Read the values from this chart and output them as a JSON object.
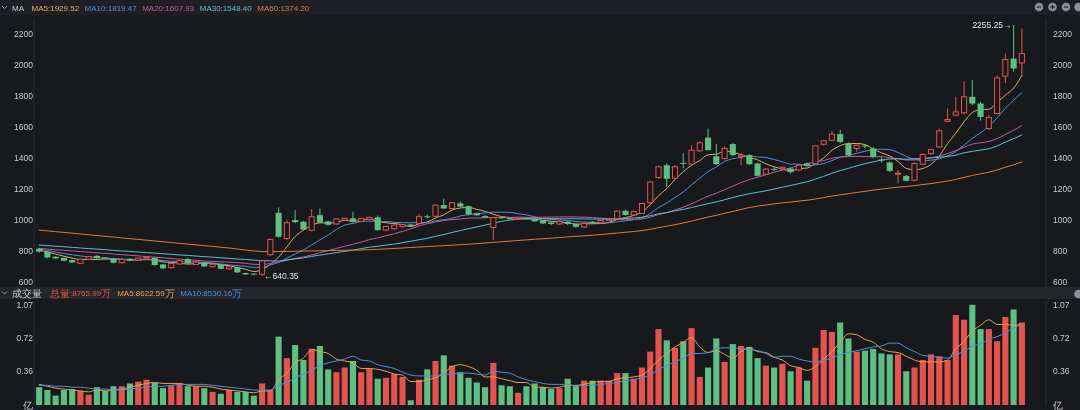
{
  "chart_data": [
    {
      "type": "candlestick",
      "title": "MA",
      "legend": "top left",
      "tick_labels": "y",
      "categories": [
        null,
        null,
        null,
        null,
        null,
        null,
        null,
        null,
        null,
        null,
        null,
        null,
        null,
        null,
        null,
        null,
        null,
        null,
        null,
        null,
        null,
        null,
        null,
        null,
        null,
        null,
        null,
        null,
        null,
        null,
        null,
        null,
        null,
        null,
        null,
        null,
        null,
        null,
        null,
        null,
        null,
        null,
        null,
        null,
        null,
        null,
        null,
        null,
        null,
        null,
        null,
        null,
        null,
        null,
        null,
        null,
        null,
        null,
        null,
        null,
        null,
        null,
        null,
        null,
        null,
        null,
        null,
        null,
        null,
        null,
        null,
        null,
        null,
        null,
        null,
        null,
        null,
        null,
        null,
        null,
        null,
        null,
        null,
        null,
        null,
        null,
        null,
        null,
        null,
        null,
        null,
        null,
        null,
        null,
        null,
        null,
        null,
        null,
        null,
        null,
        null,
        null,
        null,
        null,
        null,
        null,
        null,
        null,
        null,
        null,
        null,
        null,
        null,
        null,
        null,
        null,
        null,
        null,
        null,
        null
      ],
      "ohlc": [
        [
          816,
          822,
          790,
          797
        ],
        [
          797,
          800,
          755,
          760
        ],
        [
          765,
          768,
          750,
          754
        ],
        [
          758,
          760,
          735,
          739
        ],
        [
          743,
          746,
          724,
          728
        ],
        [
          722,
          752,
          718,
          749
        ],
        [
          748,
          768,
          744,
          765
        ],
        [
          770,
          776,
          752,
          756
        ],
        [
          760,
          763,
          748,
          752
        ],
        [
          752,
          755,
          722,
          726
        ],
        [
          726,
          751,
          722,
          748
        ],
        [
          752,
          756,
          735,
          739
        ],
        [
          743,
          759,
          740,
          756
        ],
        [
          750,
          764,
          746,
          760
        ],
        [
          758,
          762,
          706,
          711
        ],
        [
          715,
          718,
          684,
          690
        ],
        [
          694,
          725,
          690,
          722
        ],
        [
          718,
          744,
          714,
          739
        ],
        [
          750,
          757,
          718,
          722
        ],
        [
          715,
          735,
          712,
          730
        ],
        [
          727,
          730,
          698,
          702
        ],
        [
          700,
          720,
          696,
          717
        ],
        [
          714,
          716,
          683,
          687
        ],
        [
          686,
          703,
          682,
          700
        ],
        [
          698,
          700,
          660,
          664
        ],
        [
          660,
          662,
          648,
          651
        ],
        [
          656,
          659,
          646,
          650
        ],
        [
          652,
          745,
          640.35,
          738
        ],
        [
          778,
          880,
          770,
          876
        ],
        [
          1047,
          1082,
          888,
          893
        ],
        [
          882,
          1000,
          872,
          983
        ],
        [
          1000,
          1064,
          980,
          987
        ],
        [
          990,
          995,
          932,
          940
        ],
        [
          935,
          1071,
          928,
          1022
        ],
        [
          1032,
          1075,
          980,
          985
        ],
        [
          992,
          996,
          965,
          970
        ],
        [
          975,
          1012,
          972,
          1008
        ],
        [
          1000,
          1015,
          995,
          1012
        ],
        [
          1012,
          1054,
          985,
          990
        ],
        [
          992,
          1012,
          988,
          1010
        ],
        [
          1005,
          1022,
          1000,
          1018
        ],
        [
          1018,
          1030,
          930,
          936
        ],
        [
          936,
          965,
          928,
          960
        ],
        [
          945,
          972,
          938,
          968
        ],
        [
          958,
          975,
          952,
          972
        ],
        [
          972,
          976,
          955,
          960
        ],
        [
          980,
          1040,
          975,
          1022
        ],
        [
          1025,
          1036,
          1012,
          1018
        ],
        [
          1025,
          1100,
          1020,
          1097
        ],
        [
          1097,
          1139,
          1072,
          1075
        ],
        [
          1075,
          1115,
          1070,
          1112
        ],
        [
          1108,
          1120,
          1085,
          1087
        ],
        [
          1090,
          1095,
          1030,
          1039
        ],
        [
          1043,
          1048,
          1028,
          1031
        ],
        [
          1027,
          1032,
          1015,
          1017
        ],
        [
          953,
          1020,
          872,
          1017
        ],
        [
          1018,
          1022,
          1008,
          1012
        ],
        [
          1014,
          1018,
          1005,
          1008
        ],
        [
          1005,
          1015,
          1000,
          1012
        ],
        [
          1012,
          1016,
          1002,
          1006
        ],
        [
          1005,
          1010,
          990,
          992
        ],
        [
          996,
          1000,
          975,
          979
        ],
        [
          985,
          988,
          968,
          975
        ],
        [
          975,
          995,
          970,
          990
        ],
        [
          990,
          993,
          968,
          975
        ],
        [
          975,
          978,
          950,
          957
        ],
        [
          955,
          985,
          950,
          979
        ],
        [
          990,
          995,
          978,
          983
        ],
        [
          983,
          1002,
          980,
          998
        ],
        [
          998,
          1010,
          995,
          1006
        ],
        [
          1011,
          1060,
          1008,
          1058
        ],
        [
          1060,
          1068,
          1030,
          1033
        ],
        [
          1033,
          1062,
          1030,
          1055
        ],
        [
          1043,
          1112,
          1040,
          1107
        ],
        [
          1112,
          1250,
          1105,
          1246
        ],
        [
          1274,
          1350,
          1265,
          1343
        ],
        [
          1353,
          1365,
          1214,
          1266
        ],
        [
          1270,
          1355,
          1262,
          1343
        ],
        [
          1368,
          1433,
          1332,
          1362
        ],
        [
          1360,
          1482,
          1352,
          1450
        ],
        [
          1446,
          1505,
          1440,
          1497
        ],
        [
          1531,
          1589,
          1448,
          1450
        ],
        [
          1411,
          1489,
          1355,
          1360
        ],
        [
          1396,
          1475,
          1390,
          1461
        ],
        [
          1489,
          1495,
          1410,
          1418
        ],
        [
          1408,
          1430,
          1354,
          1418
        ],
        [
          1418,
          1425,
          1355,
          1360
        ],
        [
          1364,
          1370,
          1280,
          1285
        ],
        [
          1296,
          1335,
          1290,
          1328
        ],
        [
          1330,
          1340,
          1315,
          1325
        ],
        [
          1330,
          1345,
          1322,
          1340
        ],
        [
          1332,
          1337,
          1300,
          1309
        ],
        [
          1322,
          1356,
          1315,
          1353
        ],
        [
          1365,
          1372,
          1345,
          1350
        ],
        [
          1364,
          1480,
          1355,
          1478
        ],
        [
          1488,
          1515,
          1480,
          1510
        ],
        [
          1514,
          1572,
          1508,
          1553
        ],
        [
          1553,
          1582,
          1495,
          1503
        ],
        [
          1493,
          1500,
          1410,
          1418
        ],
        [
          1461,
          1485,
          1440,
          1482
        ],
        [
          1480,
          1488,
          1462,
          1475
        ],
        [
          1461,
          1470,
          1400,
          1407
        ],
        [
          1390,
          1405,
          1370,
          1385
        ],
        [
          1371,
          1378,
          1310,
          1317
        ],
        [
          1298,
          1322,
          1236,
          1302
        ],
        [
          1285,
          1290,
          1250,
          1253
        ],
        [
          1257,
          1375,
          1250,
          1364
        ],
        [
          1360,
          1430,
          1352,
          1422
        ],
        [
          1428,
          1460,
          1420,
          1454
        ],
        [
          1471,
          1589,
          1465,
          1574
        ],
        [
          1636,
          1718,
          1630,
          1647
        ],
        [
          1675,
          1793,
          1668,
          1696
        ],
        [
          1690,
          1893,
          1680,
          1793
        ],
        [
          1793,
          1900,
          1740,
          1750
        ],
        [
          1750,
          1760,
          1640,
          1664
        ],
        [
          1589,
          1675,
          1580,
          1660
        ],
        [
          1686,
          1930,
          1680,
          1915
        ],
        [
          1926,
          2072,
          1880,
          2033
        ],
        [
          2039,
          2255.25,
          1955,
          1975
        ],
        [
          2011,
          2232,
          1921,
          2071
        ]
      ],
      "colors": [
        "#5dbf81",
        "#5dbf81",
        "#5dbf81",
        "#5dbf81",
        "#5dbf81",
        "#e5534f",
        "#e5534f",
        "#5dbf81",
        "#5dbf81",
        "#5dbf81",
        "#e5534f",
        "#5dbf81",
        "#e5534f",
        "#e5534f",
        "#5dbf81",
        "#5dbf81",
        "#e5534f",
        "#e5534f",
        "#5dbf81",
        "#e5534f",
        "#5dbf81",
        "#e5534f",
        "#5dbf81",
        "#e5534f",
        "#5dbf81",
        "#5dbf81",
        "#5dbf81",
        "#e5534f",
        "#e5534f",
        "#5dbf81",
        "#e5534f",
        "#5dbf81",
        "#5dbf81",
        "#e5534f",
        "#5dbf81",
        "#5dbf81",
        "#e5534f",
        "#e5534f",
        "#5dbf81",
        "#e5534f",
        "#e5534f",
        "#5dbf81",
        "#e5534f",
        "#e5534f",
        "#e5534f",
        "#5dbf81",
        "#e5534f",
        "#5dbf81",
        "#e5534f",
        "#5dbf81",
        "#e5534f",
        "#5dbf81",
        "#5dbf81",
        "#5dbf81",
        "#5dbf81",
        "#e5534f",
        "#5dbf81",
        "#5dbf81",
        "#e5534f",
        "#5dbf81",
        "#5dbf81",
        "#5dbf81",
        "#5dbf81",
        "#e5534f",
        "#5dbf81",
        "#5dbf81",
        "#e5534f",
        "#5dbf81",
        "#e5534f",
        "#e5534f",
        "#e5534f",
        "#5dbf81",
        "#e5534f",
        "#e5534f",
        "#e5534f",
        "#e5534f",
        "#5dbf81",
        "#e5534f",
        "#5dbf81",
        "#e5534f",
        "#e5534f",
        "#5dbf81",
        "#5dbf81",
        "#e5534f",
        "#5dbf81",
        "#e5534f",
        "#5dbf81",
        "#5dbf81",
        "#e5534f",
        "#5dbf81",
        "#e5534f",
        "#5dbf81",
        "#e5534f",
        "#5dbf81",
        "#e5534f",
        "#e5534f",
        "#e5534f",
        "#5dbf81",
        "#5dbf81",
        "#e5534f",
        "#5dbf81",
        "#5dbf81",
        "#5dbf81",
        "#5dbf81",
        "#e5534f",
        "#5dbf81",
        "#e5534f",
        "#e5534f",
        "#e5534f",
        "#e5534f",
        "#e5534f",
        "#e5534f",
        "#e5534f",
        "#5dbf81",
        "#5dbf81",
        "#e5534f",
        "#e5534f",
        "#e5534f",
        "#5dbf81",
        "#e5534f"
      ],
      "series": [
        {
          "type": "line",
          "name": "MA5:1929.52",
          "color": "#e3ad62",
          "values": [
            808,
            795,
            782,
            768,
            756,
            746,
            747,
            747,
            750,
            750,
            749,
            744,
            744,
            746,
            743,
            731,
            728,
            724,
            717,
            721,
            723,
            722,
            712,
            707,
            694,
            684,
            670,
            681,
            716,
            762,
            828,
            895,
            936,
            965,
            983,
            981,
            985,
            999,
            993,
            998,
            1008,
            993,
            983,
            978,
            971,
            959,
            976,
            988,
            1014,
            1034,
            1065,
            1078,
            1082,
            1069,
            1057,
            1038,
            1023,
            1017,
            1013,
            1011,
            1006,
            999,
            993,
            988,
            982,
            975,
            975,
            977,
            978,
            985,
            1005,
            1016,
            1030,
            1052,
            1100,
            1157,
            1203,
            1261,
            1312,
            1353,
            1384,
            1420,
            1424,
            1444,
            1437,
            1421,
            1403,
            1388,
            1362,
            1343,
            1328,
            1317,
            1331,
            1335,
            1366,
            1400,
            1449,
            1479,
            1492,
            1493,
            1486,
            1457,
            1433,
            1413,
            1377,
            1333,
            1324,
            1332,
            1359,
            1413,
            1492,
            1559,
            1633,
            1692,
            1710,
            1713,
            1756,
            1804,
            1849,
            1930
          ]
        },
        {
          "type": "line",
          "name": "MA10:1819.47",
          "color": "#4f8fdc",
          "values": [
            815,
            805,
            795,
            785,
            777,
            770,
            764,
            759,
            756,
            753,
            748,
            746,
            746,
            748,
            746,
            740,
            736,
            734,
            731,
            732,
            727,
            725,
            718,
            712,
            707,
            703,
            696,
            696,
            712,
            728,
            756,
            783,
            808,
            840,
            873,
            904,
            940,
            968,
            979,
            991,
            994,
            989,
            991,
            986,
            984,
            983,
            985,
            985,
            996,
            1003,
            1012,
            1027,
            1035,
            1041,
            1046,
            1052,
            1051,
            1050,
            1041,
            1034,
            1022,
            1011,
            1005,
            1001,
            997,
            991,
            987,
            985,
            983,
            983,
            990,
            995,
            1003,
            1015,
            1042,
            1081,
            1110,
            1146,
            1182,
            1226,
            1270,
            1312,
            1342,
            1378,
            1395,
            1403,
            1412,
            1406,
            1403,
            1390,
            1375,
            1360,
            1360,
            1349,
            1355,
            1364,
            1383,
            1405,
            1414,
            1430,
            1443,
            1453,
            1456,
            1453,
            1435,
            1410,
            1391,
            1383,
            1386,
            1395,
            1413,
            1441,
            1482,
            1526,
            1562,
            1602,
            1658,
            1719,
            1771,
            1819
          ]
        },
        {
          "type": "line",
          "name": "MA20:1607.93",
          "color": "#c9569a",
          "values": [
            818,
            814,
            810,
            806,
            802,
            798,
            794,
            790,
            786,
            782,
            778,
            774,
            770,
            766,
            762,
            758,
            753,
            749,
            745,
            742,
            737,
            735,
            732,
            730,
            727,
            722,
            716,
            715,
            721,
            730,
            742,
            754,
            763,
            776,
            790,
            804,
            818,
            832,
            845,
            859,
            875,
            886,
            900,
            913,
            928,
            944,
            963,
            977,
            988,
            997,
            1003,
            1008,
            1013,
            1014,
            1015,
            1017,
            1018,
            1017,
            1019,
            1018,
            1017,
            1019,
            1020,
            1021,
            1021,
            1021,
            1019,
            1017,
            1012,
            1009,
            1006,
            1003,
            1004,
            1008,
            1019,
            1036,
            1048,
            1065,
            1083,
            1105,
            1130,
            1154,
            1173,
            1196,
            1219,
            1242,
            1261,
            1276,
            1292,
            1308,
            1322,
            1336,
            1351,
            1363,
            1375,
            1383,
            1398,
            1406,
            1408,
            1410,
            1409,
            1407,
            1408,
            1401,
            1395,
            1387,
            1387,
            1394,
            1400,
            1412,
            1428,
            1447,
            1469,
            1489,
            1498,
            1506,
            1524,
            1551,
            1578,
            1608
          ]
        },
        {
          "type": "line",
          "name": "MA30:1548.40",
          "color": "#56c1d6",
          "values": [
            840,
            836,
            832,
            829,
            825,
            821,
            817,
            814,
            810,
            806,
            802,
            799,
            795,
            791,
            788,
            784,
            780,
            776,
            773,
            769,
            765,
            762,
            758,
            754,
            750,
            747,
            743,
            740,
            738,
            737,
            744,
            751,
            757,
            767,
            775,
            783,
            791,
            799,
            807,
            817,
            826,
            832,
            839,
            846,
            855,
            864,
            874,
            883,
            896,
            907,
            921,
            933,
            945,
            956,
            968,
            980,
            992,
            1001,
            1005,
            1009,
            1009,
            1009,
            1010,
            1009,
            1009,
            1009,
            1008,
            1007,
            1007,
            1007,
            1008,
            1011,
            1014,
            1019,
            1028,
            1041,
            1049,
            1060,
            1069,
            1081,
            1094,
            1106,
            1117,
            1131,
            1145,
            1158,
            1170,
            1179,
            1189,
            1200,
            1212,
            1223,
            1235,
            1247,
            1264,
            1282,
            1302,
            1319,
            1333,
            1349,
            1363,
            1375,
            1386,
            1393,
            1395,
            1392,
            1395,
            1398,
            1401,
            1405,
            1410,
            1418,
            1433,
            1442,
            1451,
            1459,
            1477,
            1502,
            1524,
            1548
          ]
        },
        {
          "type": "line",
          "name": "MA60:1374.20",
          "color": "#e6783a",
          "values": [
            936,
            931,
            926,
            921,
            916,
            911,
            906,
            901,
            896,
            891,
            886,
            881,
            876,
            871,
            866,
            861,
            856,
            851,
            846,
            841,
            836,
            831,
            826,
            821,
            814,
            808,
            802,
            798,
            797,
            798,
            799,
            800,
            801,
            802,
            803,
            804,
            805,
            806,
            807,
            808,
            810,
            812,
            815,
            818,
            821,
            824,
            827,
            830,
            833,
            836,
            839,
            842,
            845,
            849,
            853,
            857,
            861,
            865,
            869,
            873,
            877,
            880,
            884,
            888,
            892,
            896,
            899,
            903,
            907,
            912,
            917,
            922,
            927,
            933,
            941,
            952,
            961,
            971,
            982,
            994,
            1007,
            1020,
            1031,
            1044,
            1056,
            1069,
            1081,
            1090,
            1097,
            1105,
            1111,
            1116,
            1123,
            1128,
            1136,
            1145,
            1155,
            1163,
            1170,
            1178,
            1185,
            1193,
            1200,
            1206,
            1212,
            1216,
            1222,
            1229,
            1235,
            1243,
            1252,
            1262,
            1275,
            1287,
            1298,
            1308,
            1323,
            1340,
            1356,
            1374
          ]
        }
      ],
      "ylim": [
        570,
        2300
      ],
      "yticks": [
        600,
        800,
        1000,
        1200,
        1400,
        1600,
        1800,
        2000,
        2200
      ],
      "y2lim": [
        570,
        2300
      ],
      "y2ticks": [
        600,
        800,
        1000,
        1200,
        1400,
        1600,
        1800,
        2000,
        2200
      ],
      "annotations": [
        "2255.25→",
        "←640.35"
      ]
    },
    {
      "type": "bar",
      "title": "成交量",
      "legend": "top left",
      "tick_labels": "y",
      "categories": [
        null,
        null,
        null,
        null,
        null,
        null,
        null,
        null,
        null,
        null,
        null,
        null,
        null,
        null,
        null,
        null,
        null,
        null,
        null,
        null,
        null,
        null,
        null,
        null,
        null,
        null,
        null,
        null,
        null,
        null,
        null,
        null,
        null,
        null,
        null,
        null,
        null,
        null,
        null,
        null,
        null,
        null,
        null,
        null,
        null,
        null,
        null,
        null,
        null,
        null,
        null,
        null,
        null,
        null,
        null,
        null,
        null,
        null,
        null,
        null,
        null,
        null,
        null,
        null,
        null,
        null,
        null,
        null,
        null,
        null,
        null,
        null,
        null,
        null,
        null,
        null,
        null,
        null,
        null,
        null,
        null,
        null,
        null,
        null,
        null,
        null,
        null,
        null,
        null,
        null,
        null,
        null,
        null,
        null,
        null,
        null,
        null,
        null,
        null,
        null,
        null,
        null,
        null,
        null,
        null,
        null,
        null,
        null,
        null,
        null,
        null,
        null,
        null,
        null,
        null,
        null,
        null,
        null,
        null,
        null
      ],
      "series": [
        {
          "name": "总量:8765.99万",
          "color": "#e5534f",
          "colors": [
            "#5dbf81",
            "#5dbf81",
            "#5dbf81",
            "#5dbf81",
            "#5dbf81",
            "#e5534f",
            "#e5534f",
            "#5dbf81",
            "#5dbf81",
            "#5dbf81",
            "#e5534f",
            "#5dbf81",
            "#e5534f",
            "#e5534f",
            "#5dbf81",
            "#5dbf81",
            "#e5534f",
            "#e5534f",
            "#5dbf81",
            "#e5534f",
            "#5dbf81",
            "#e5534f",
            "#5dbf81",
            "#e5534f",
            "#5dbf81",
            "#5dbf81",
            "#5dbf81",
            "#e5534f",
            "#e5534f",
            "#5dbf81",
            "#e5534f",
            "#5dbf81",
            "#5dbf81",
            "#e5534f",
            "#5dbf81",
            "#5dbf81",
            "#e5534f",
            "#e5534f",
            "#5dbf81",
            "#e5534f",
            "#e5534f",
            "#5dbf81",
            "#e5534f",
            "#e5534f",
            "#e5534f",
            "#5dbf81",
            "#e5534f",
            "#5dbf81",
            "#e5534f",
            "#5dbf81",
            "#e5534f",
            "#5dbf81",
            "#5dbf81",
            "#5dbf81",
            "#5dbf81",
            "#e5534f",
            "#5dbf81",
            "#5dbf81",
            "#e5534f",
            "#5dbf81",
            "#5dbf81",
            "#5dbf81",
            "#5dbf81",
            "#e5534f",
            "#5dbf81",
            "#5dbf81",
            "#e5534f",
            "#5dbf81",
            "#e5534f",
            "#e5534f",
            "#e5534f",
            "#5dbf81",
            "#e5534f",
            "#e5534f",
            "#e5534f",
            "#e5534f",
            "#5dbf81",
            "#e5534f",
            "#5dbf81",
            "#e5534f",
            "#e5534f",
            "#5dbf81",
            "#5dbf81",
            "#e5534f",
            "#5dbf81",
            "#e5534f",
            "#5dbf81",
            "#5dbf81",
            "#e5534f",
            "#5dbf81",
            "#e5534f",
            "#5dbf81",
            "#e5534f",
            "#5dbf81",
            "#e5534f",
            "#e5534f",
            "#e5534f",
            "#5dbf81",
            "#5dbf81",
            "#e5534f",
            "#5dbf81",
            "#5dbf81",
            "#5dbf81",
            "#5dbf81",
            "#e5534f",
            "#5dbf81",
            "#e5534f",
            "#e5534f",
            "#e5534f",
            "#e5534f",
            "#e5534f",
            "#e5534f",
            "#e5534f",
            "#5dbf81",
            "#5dbf81",
            "#e5534f",
            "#e5534f",
            "#e5534f",
            "#5dbf81",
            "#e5534f"
          ],
          "values": [
            0.19,
            0.16,
            0.1,
            0.16,
            0.17,
            0.15,
            0.11,
            0.19,
            0.15,
            0.2,
            0.2,
            0.23,
            0.25,
            0.27,
            0.24,
            0.18,
            0.21,
            0.23,
            0.2,
            0.2,
            0.18,
            0.14,
            0.12,
            0.16,
            0.14,
            0.14,
            0.1,
            0.23,
            0.16,
            0.73,
            0.5,
            0.64,
            0.48,
            0.6,
            0.63,
            0.38,
            0.35,
            0.4,
            0.47,
            0.35,
            0.39,
            0.28,
            0.29,
            0.33,
            0.3,
            0.05,
            0.27,
            0.38,
            0.47,
            0.53,
            0.42,
            0.35,
            0.29,
            0.24,
            0.19,
            0.45,
            0.21,
            0.2,
            0.13,
            0.2,
            0.23,
            0.19,
            0.17,
            0.18,
            0.28,
            0.21,
            0.26,
            0.26,
            0.26,
            0.26,
            0.34,
            0.34,
            0.28,
            0.4,
            0.57,
            0.81,
            0.69,
            0.61,
            0.68,
            0.82,
            0.3,
            0.4,
            0.71,
            0.46,
            0.65,
            0.63,
            0.62,
            0.5,
            0.42,
            0.4,
            0.44,
            0.36,
            0.4,
            0.26,
            0.61,
            0.8,
            0.78,
            0.88,
            0.71,
            0.57,
            0.58,
            0.6,
            0.55,
            0.54,
            0.54,
            0.36,
            0.4,
            0.48,
            0.54,
            0.52,
            0.48,
            0.96,
            0.91,
            1.07,
            0.81,
            0.81,
            0.68,
            0.94,
            1.02,
            0.88
          ]
        },
        {
          "type": "line",
          "name": "MA5:8622.59万",
          "color": "#e8a04a",
          "values": [
            0.22,
            0.2,
            0.18,
            0.17,
            0.16,
            0.15,
            0.14,
            0.16,
            0.15,
            0.16,
            0.17,
            0.19,
            0.21,
            0.23,
            0.24,
            0.23,
            0.23,
            0.23,
            0.21,
            0.2,
            0.2,
            0.19,
            0.17,
            0.16,
            0.15,
            0.14,
            0.13,
            0.15,
            0.15,
            0.27,
            0.34,
            0.45,
            0.5,
            0.59,
            0.57,
            0.55,
            0.49,
            0.47,
            0.45,
            0.39,
            0.39,
            0.38,
            0.36,
            0.33,
            0.32,
            0.25,
            0.25,
            0.27,
            0.29,
            0.34,
            0.41,
            0.43,
            0.41,
            0.37,
            0.3,
            0.3,
            0.28,
            0.26,
            0.24,
            0.24,
            0.19,
            0.19,
            0.18,
            0.19,
            0.21,
            0.21,
            0.22,
            0.24,
            0.25,
            0.25,
            0.28,
            0.29,
            0.3,
            0.32,
            0.39,
            0.48,
            0.55,
            0.62,
            0.67,
            0.72,
            0.62,
            0.56,
            0.58,
            0.54,
            0.5,
            0.57,
            0.61,
            0.57,
            0.56,
            0.51,
            0.48,
            0.42,
            0.4,
            0.37,
            0.41,
            0.49,
            0.57,
            0.67,
            0.76,
            0.75,
            0.7,
            0.67,
            0.6,
            0.57,
            0.56,
            0.52,
            0.48,
            0.46,
            0.46,
            0.46,
            0.48,
            0.6,
            0.68,
            0.79,
            0.85,
            0.91,
            0.86,
            0.86,
            0.85,
            0.86
          ]
        },
        {
          "type": "line",
          "name": "MA10:8530.16万",
          "color": "#4a8fe0",
          "values": [
            0.21,
            0.21,
            0.2,
            0.2,
            0.19,
            0.19,
            0.18,
            0.17,
            0.17,
            0.16,
            0.16,
            0.17,
            0.18,
            0.19,
            0.2,
            0.2,
            0.21,
            0.22,
            0.22,
            0.22,
            0.22,
            0.21,
            0.2,
            0.19,
            0.18,
            0.17,
            0.16,
            0.16,
            0.16,
            0.21,
            0.24,
            0.29,
            0.33,
            0.37,
            0.42,
            0.45,
            0.47,
            0.49,
            0.52,
            0.48,
            0.47,
            0.43,
            0.41,
            0.39,
            0.35,
            0.32,
            0.31,
            0.31,
            0.31,
            0.33,
            0.33,
            0.34,
            0.34,
            0.33,
            0.32,
            0.36,
            0.35,
            0.34,
            0.3,
            0.27,
            0.25,
            0.23,
            0.22,
            0.22,
            0.22,
            0.2,
            0.21,
            0.21,
            0.22,
            0.23,
            0.24,
            0.26,
            0.27,
            0.29,
            0.32,
            0.38,
            0.42,
            0.46,
            0.5,
            0.55,
            0.55,
            0.56,
            0.6,
            0.61,
            0.61,
            0.6,
            0.59,
            0.58,
            0.55,
            0.51,
            0.52,
            0.52,
            0.49,
            0.47,
            0.46,
            0.48,
            0.5,
            0.54,
            0.56,
            0.58,
            0.6,
            0.62,
            0.63,
            0.66,
            0.66,
            0.61,
            0.57,
            0.53,
            0.52,
            0.51,
            0.5,
            0.54,
            0.57,
            0.63,
            0.65,
            0.7,
            0.73,
            0.77,
            0.82,
            0.86
          ]
        }
      ],
      "ylim": [
        0,
        1.11
      ],
      "yticks": [
        {
          "value": 0,
          "label": "亿"
        },
        0.36,
        0.72,
        1.07
      ],
      "y2lim": [
        0,
        1.11
      ],
      "y2ticks": [
        {
          "value": 0,
          "label": "亿"
        },
        0.36,
        0.72,
        1.07
      ]
    }
  ]
}
